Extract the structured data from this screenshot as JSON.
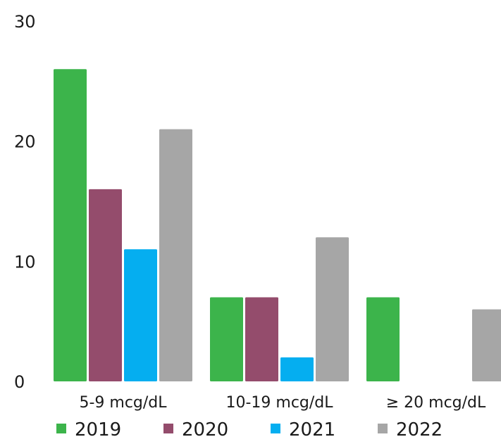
{
  "chart_data": {
    "type": "bar",
    "title": "",
    "xlabel": "",
    "ylabel": "",
    "ylim": [
      0,
      30
    ],
    "yticks": [
      0,
      10,
      20,
      30
    ],
    "grid": false,
    "legend_position": "bottom",
    "categories": [
      "5-9 mcg/dL",
      "10-19 mcg/dL",
      "≥ 20 mcg/dL"
    ],
    "series": [
      {
        "name": "2019",
        "color": "#3cb44b",
        "values": [
          26,
          7,
          7
        ]
      },
      {
        "name": "2020",
        "color": "#944c6c",
        "values": [
          16,
          7,
          0
        ]
      },
      {
        "name": "2021",
        "color": "#05aef0",
        "values": [
          11,
          2,
          0
        ]
      },
      {
        "name": "2022",
        "color": "#a6a6a6",
        "values": [
          21,
          12,
          6
        ]
      }
    ]
  }
}
